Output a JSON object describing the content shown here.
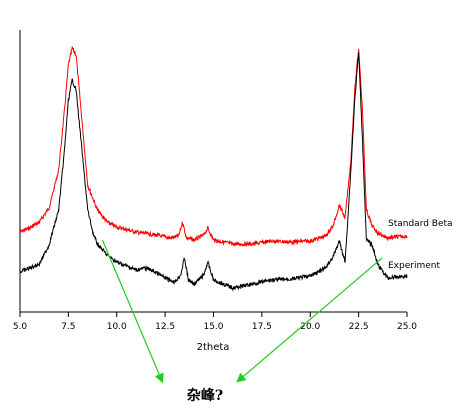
{
  "chart_data": {
    "type": "line",
    "title": "",
    "xlabel": "2theta",
    "ylabel": "",
    "xlim": [
      5.0,
      25.0
    ],
    "grid": false,
    "x_ticks": [
      "5.0",
      "7.5",
      "10.0",
      "12.5",
      "15.0",
      "17.5",
      "20.0",
      "22.5",
      "25.0"
    ],
    "series": [
      {
        "name": "Standard Beta",
        "color": "#ff0000",
        "points": [
          [
            5.0,
            232
          ],
          [
            5.5,
            228
          ],
          [
            6.0,
            222
          ],
          [
            6.5,
            208
          ],
          [
            7.0,
            170
          ],
          [
            7.3,
            110
          ],
          [
            7.5,
            65
          ],
          [
            7.7,
            48
          ],
          [
            7.9,
            55
          ],
          [
            8.2,
            120
          ],
          [
            8.5,
            185
          ],
          [
            9.0,
            210
          ],
          [
            9.5,
            222
          ],
          [
            10.0,
            227
          ],
          [
            11.0,
            232
          ],
          [
            12.0,
            235
          ],
          [
            12.8,
            238
          ],
          [
            13.2,
            236
          ],
          [
            13.4,
            222
          ],
          [
            13.6,
            238
          ],
          [
            14.0,
            240
          ],
          [
            14.5,
            235
          ],
          [
            14.7,
            228
          ],
          [
            15.0,
            240
          ],
          [
            16.0,
            244
          ],
          [
            17.0,
            244
          ],
          [
            18.0,
            241
          ],
          [
            19.0,
            242
          ],
          [
            20.0,
            241
          ],
          [
            20.8,
            236
          ],
          [
            21.2,
            225
          ],
          [
            21.5,
            205
          ],
          [
            21.8,
            218
          ],
          [
            22.1,
            160
          ],
          [
            22.3,
            90
          ],
          [
            22.5,
            48
          ],
          [
            22.7,
            110
          ],
          [
            22.9,
            210
          ],
          [
            23.2,
            226
          ],
          [
            23.5,
            233
          ],
          [
            24.0,
            238
          ],
          [
            25.0,
            236
          ]
        ]
      },
      {
        "name": "Experiment",
        "color": "#000000",
        "points": [
          [
            5.0,
            272
          ],
          [
            5.5,
            268
          ],
          [
            6.0,
            264
          ],
          [
            6.5,
            245
          ],
          [
            7.0,
            210
          ],
          [
            7.3,
            150
          ],
          [
            7.5,
            100
          ],
          [
            7.7,
            80
          ],
          [
            7.9,
            90
          ],
          [
            8.2,
            150
          ],
          [
            8.5,
            210
          ],
          [
            8.8,
            235
          ],
          [
            9.0,
            244
          ],
          [
            9.5,
            255
          ],
          [
            10.0,
            262
          ],
          [
            10.5,
            266
          ],
          [
            11.0,
            270
          ],
          [
            11.5,
            268
          ],
          [
            12.0,
            272
          ],
          [
            12.5,
            278
          ],
          [
            13.0,
            282
          ],
          [
            13.3,
            275
          ],
          [
            13.5,
            258
          ],
          [
            13.7,
            280
          ],
          [
            14.0,
            284
          ],
          [
            14.5,
            275
          ],
          [
            14.7,
            262
          ],
          [
            15.0,
            280
          ],
          [
            16.0,
            288
          ],
          [
            17.0,
            284
          ],
          [
            18.0,
            280
          ],
          [
            19.0,
            279
          ],
          [
            20.0,
            276
          ],
          [
            20.8,
            268
          ],
          [
            21.2,
            256
          ],
          [
            21.5,
            241
          ],
          [
            21.8,
            262
          ],
          [
            22.1,
            170
          ],
          [
            22.3,
            100
          ],
          [
            22.5,
            52
          ],
          [
            22.7,
            140
          ],
          [
            22.9,
            240
          ],
          [
            23.2,
            245
          ],
          [
            23.5,
            265
          ],
          [
            24.0,
            278
          ],
          [
            25.0,
            276
          ]
        ]
      }
    ],
    "annotation": {
      "text": "杂峰?",
      "color": "#22cc22",
      "targets": [
        [
          9.0,
          240
        ],
        [
          23.2,
          258
        ]
      ]
    }
  }
}
